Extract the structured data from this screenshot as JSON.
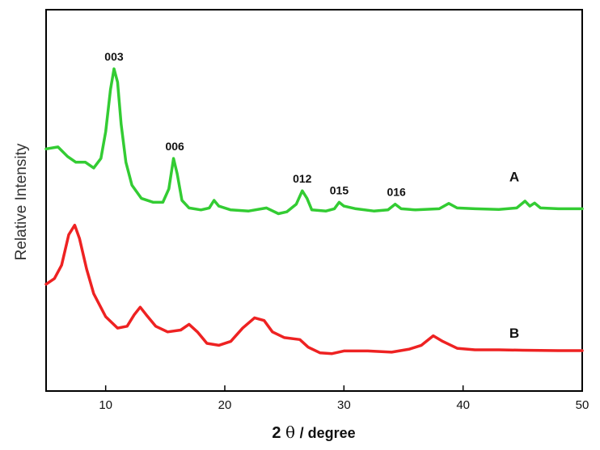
{
  "chart_data": {
    "type": "line",
    "xlabel_value": "2",
    "xlabel_symbol": "θ",
    "xlabel_unit": " / degree",
    "ylabel": "Relative Intensity",
    "xlim": [
      5,
      50
    ],
    "ylim": [
      0,
      10
    ],
    "x_ticks": [
      10,
      20,
      30,
      40,
      50
    ],
    "x_tick_labels": [
      "10",
      "20",
      "30",
      "40",
      "50"
    ],
    "grid": false,
    "series": [
      {
        "name": "A",
        "color": "#33cc33",
        "points": [
          [
            5.0,
            6.35
          ],
          [
            6.0,
            6.4
          ],
          [
            6.8,
            6.15
          ],
          [
            7.5,
            6.0
          ],
          [
            8.3,
            6.0
          ],
          [
            9.0,
            5.85
          ],
          [
            9.6,
            6.1
          ],
          [
            10.0,
            6.8
          ],
          [
            10.4,
            7.9
          ],
          [
            10.7,
            8.45
          ],
          [
            11.0,
            8.1
          ],
          [
            11.3,
            7.0
          ],
          [
            11.7,
            6.0
          ],
          [
            12.2,
            5.4
          ],
          [
            13.0,
            5.05
          ],
          [
            14.0,
            4.95
          ],
          [
            14.8,
            4.95
          ],
          [
            15.3,
            5.3
          ],
          [
            15.7,
            6.1
          ],
          [
            16.0,
            5.7
          ],
          [
            16.4,
            5.0
          ],
          [
            17.0,
            4.8
          ],
          [
            18.0,
            4.75
          ],
          [
            18.7,
            4.8
          ],
          [
            19.1,
            5.0
          ],
          [
            19.5,
            4.85
          ],
          [
            20.5,
            4.75
          ],
          [
            22.0,
            4.72
          ],
          [
            23.5,
            4.8
          ],
          [
            24.5,
            4.65
          ],
          [
            25.2,
            4.7
          ],
          [
            26.0,
            4.9
          ],
          [
            26.5,
            5.25
          ],
          [
            26.9,
            5.05
          ],
          [
            27.3,
            4.75
          ],
          [
            28.5,
            4.72
          ],
          [
            29.2,
            4.78
          ],
          [
            29.6,
            4.95
          ],
          [
            30.0,
            4.85
          ],
          [
            31.0,
            4.78
          ],
          [
            32.5,
            4.72
          ],
          [
            33.7,
            4.75
          ],
          [
            34.3,
            4.9
          ],
          [
            34.8,
            4.78
          ],
          [
            36.0,
            4.75
          ],
          [
            38.0,
            4.78
          ],
          [
            38.8,
            4.92
          ],
          [
            39.5,
            4.8
          ],
          [
            41.0,
            4.78
          ],
          [
            43.0,
            4.76
          ],
          [
            44.5,
            4.8
          ],
          [
            45.2,
            4.98
          ],
          [
            45.6,
            4.85
          ],
          [
            46.0,
            4.93
          ],
          [
            46.5,
            4.8
          ],
          [
            48.0,
            4.78
          ],
          [
            50.0,
            4.78
          ]
        ]
      },
      {
        "name": "B",
        "color": "#ee2222",
        "points": [
          [
            5.0,
            2.8
          ],
          [
            5.7,
            2.95
          ],
          [
            6.3,
            3.3
          ],
          [
            6.9,
            4.1
          ],
          [
            7.4,
            4.35
          ],
          [
            7.8,
            4.0
          ],
          [
            8.4,
            3.2
          ],
          [
            9.0,
            2.55
          ],
          [
            10.0,
            1.95
          ],
          [
            11.0,
            1.65
          ],
          [
            11.8,
            1.7
          ],
          [
            12.4,
            2.0
          ],
          [
            12.9,
            2.2
          ],
          [
            13.4,
            2.0
          ],
          [
            14.2,
            1.7
          ],
          [
            15.2,
            1.55
          ],
          [
            16.3,
            1.6
          ],
          [
            17.0,
            1.75
          ],
          [
            17.7,
            1.55
          ],
          [
            18.5,
            1.25
          ],
          [
            19.5,
            1.2
          ],
          [
            20.5,
            1.3
          ],
          [
            21.5,
            1.65
          ],
          [
            22.5,
            1.92
          ],
          [
            23.3,
            1.85
          ],
          [
            24.0,
            1.55
          ],
          [
            25.0,
            1.4
          ],
          [
            26.3,
            1.35
          ],
          [
            27.0,
            1.15
          ],
          [
            28.0,
            1.0
          ],
          [
            29.0,
            0.98
          ],
          [
            30.0,
            1.05
          ],
          [
            32.0,
            1.05
          ],
          [
            34.0,
            1.02
          ],
          [
            35.5,
            1.1
          ],
          [
            36.5,
            1.2
          ],
          [
            37.5,
            1.45
          ],
          [
            38.3,
            1.3
          ],
          [
            39.5,
            1.12
          ],
          [
            41.0,
            1.08
          ],
          [
            43.0,
            1.08
          ],
          [
            45.0,
            1.07
          ],
          [
            48.0,
            1.06
          ],
          [
            50.0,
            1.06
          ]
        ]
      }
    ],
    "annotations": [
      {
        "text": "003",
        "x": 10.7
      },
      {
        "text": "006",
        "x": 15.8
      },
      {
        "text": "012",
        "x": 26.5
      },
      {
        "text": "015",
        "x": 29.6
      },
      {
        "text": "016",
        "x": 34.4
      }
    ],
    "curve_labels": [
      {
        "text": "A",
        "x": 44.3,
        "y": 5.5
      },
      {
        "text": "B",
        "x": 44.3,
        "y": 1.4
      }
    ]
  }
}
